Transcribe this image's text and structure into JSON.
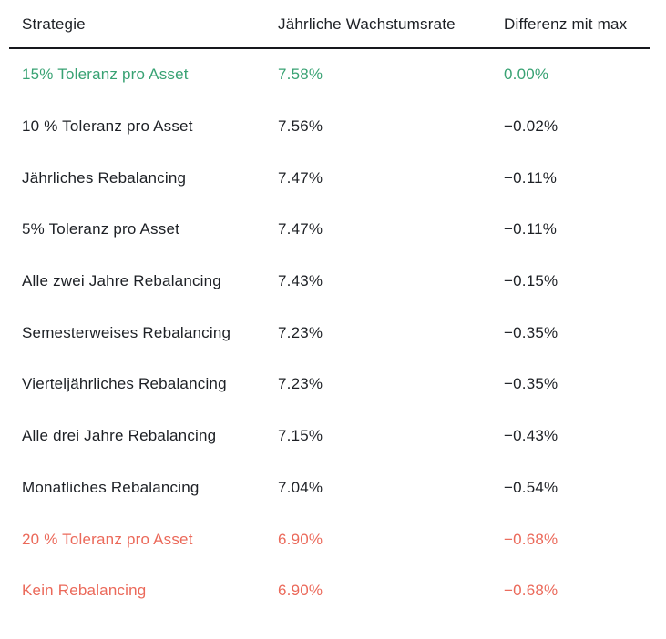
{
  "table": {
    "columns": [
      {
        "label": "Strategie"
      },
      {
        "label": "Jährliche Wachstumsrate"
      },
      {
        "label": "Differenz mit max"
      }
    ],
    "rows": [
      {
        "strategy": "15% Toleranz pro Asset",
        "growth": "7.58%",
        "diff": "0.00%",
        "highlight": "best"
      },
      {
        "strategy": "10 % Toleranz pro Asset",
        "growth": "7.56%",
        "diff": "−0.02%",
        "highlight": ""
      },
      {
        "strategy": "Jährliches Rebalancing",
        "growth": "7.47%",
        "diff": "−0.11%",
        "highlight": ""
      },
      {
        "strategy": "5% Toleranz pro Asset",
        "growth": "7.47%",
        "diff": "−0.11%",
        "highlight": ""
      },
      {
        "strategy": "Alle zwei Jahre Rebalancing",
        "growth": "7.43%",
        "diff": "−0.15%",
        "highlight": ""
      },
      {
        "strategy": "Semesterweises Rebalancing",
        "growth": "7.23%",
        "diff": "−0.35%",
        "highlight": ""
      },
      {
        "strategy": "Vierteljährliches Rebalancing",
        "growth": "7.23%",
        "diff": "−0.35%",
        "highlight": ""
      },
      {
        "strategy": "Alle drei Jahre Rebalancing",
        "growth": "7.15%",
        "diff": "−0.43%",
        "highlight": ""
      },
      {
        "strategy": "Monatliches Rebalancing",
        "growth": "7.04%",
        "diff": "−0.54%",
        "highlight": ""
      },
      {
        "strategy": "20 % Toleranz pro Asset",
        "growth": "6.90%",
        "diff": "−0.68%",
        "highlight": "worst"
      },
      {
        "strategy": "Kein Rebalancing",
        "growth": "6.90%",
        "diff": "−0.68%",
        "highlight": "worst"
      }
    ],
    "colors": {
      "best": "#38a273",
      "worst": "#eb695a",
      "text": "#1d2025",
      "header_rule": "#16181d"
    }
  },
  "chart_data": {
    "type": "table",
    "title": "",
    "columns": [
      "Strategie",
      "Jährliche Wachstumsrate",
      "Differenz mit max"
    ],
    "rows": [
      [
        "15% Toleranz pro Asset",
        7.58,
        0.0
      ],
      [
        "10 % Toleranz pro Asset",
        7.56,
        -0.02
      ],
      [
        "Jährliches Rebalancing",
        7.47,
        -0.11
      ],
      [
        "5% Toleranz pro Asset",
        7.47,
        -0.11
      ],
      [
        "Alle zwei Jahre Rebalancing",
        7.43,
        -0.15
      ],
      [
        "Semesterweises Rebalancing",
        7.23,
        -0.35
      ],
      [
        "Vierteljährliches Rebalancing",
        7.23,
        -0.35
      ],
      [
        "Alle drei Jahre Rebalancing",
        7.15,
        -0.43
      ],
      [
        "Monatliches Rebalancing",
        7.04,
        -0.54
      ],
      [
        "20 % Toleranz pro Asset",
        6.9,
        -0.68
      ],
      [
        "Kein Rebalancing",
        6.9,
        -0.68
      ]
    ],
    "units": "percent",
    "notes": "best row shown green, worst rows shown coral-red"
  }
}
